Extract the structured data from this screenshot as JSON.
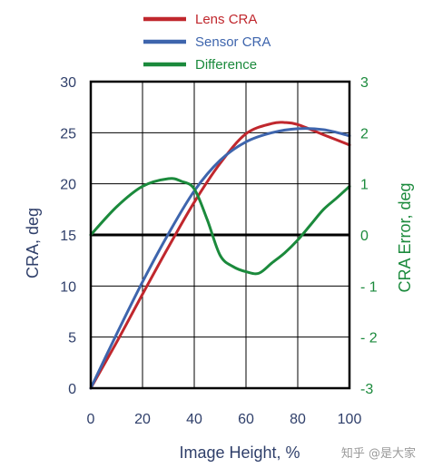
{
  "chart_data": {
    "type": "line",
    "x_axis": {
      "label": "Image Height, %",
      "range": [
        0,
        100
      ],
      "ticks": [
        0,
        20,
        40,
        60,
        80,
        100
      ]
    },
    "y_left": {
      "label": "CRA, deg",
      "range": [
        0,
        30
      ],
      "ticks": [
        0,
        5,
        10,
        15,
        20,
        25,
        30
      ]
    },
    "y_right": {
      "label": "CRA Error, deg",
      "range": [
        -3,
        3
      ],
      "ticks": [
        -3,
        -2,
        -1,
        0,
        1,
        2,
        3
      ],
      "tick_labels": [
        "-3",
        "- 2",
        "- 1",
        "0",
        "1",
        "2",
        "3"
      ]
    },
    "grid": true,
    "legend_position": "top",
    "series": [
      {
        "name": "Lens CRA",
        "axis": "left",
        "color": "#c0272d",
        "x": [
          0,
          10,
          20,
          30,
          40,
          50,
          60,
          70,
          75,
          80,
          90,
          100
        ],
        "y": [
          0,
          4.5,
          9.2,
          13.8,
          18.2,
          22.0,
          24.9,
          25.9,
          26.0,
          25.8,
          24.8,
          23.8
        ]
      },
      {
        "name": "Sensor CRA",
        "axis": "left",
        "color": "#3e65ad",
        "x": [
          0,
          10,
          20,
          30,
          40,
          50,
          60,
          70,
          80,
          90,
          100
        ],
        "y": [
          0,
          5.3,
          10.4,
          15.1,
          19.3,
          22.3,
          24.1,
          25.0,
          25.4,
          25.3,
          24.7
        ]
      },
      {
        "name": "Difference",
        "axis": "right",
        "color": "#1b8a3c",
        "x": [
          0,
          10,
          20,
          30,
          35,
          40,
          45,
          50,
          55,
          60,
          65,
          70,
          75,
          80,
          85,
          90,
          95,
          100
        ],
        "y": [
          0,
          0.55,
          0.95,
          1.1,
          1.05,
          0.9,
          0.3,
          -0.4,
          -0.62,
          -0.72,
          -0.75,
          -0.55,
          -0.35,
          -0.1,
          0.2,
          0.5,
          0.72,
          0.95
        ]
      }
    ],
    "zero_line": {
      "axis": "right",
      "value": 0
    }
  },
  "watermark": "知乎 @是大家"
}
